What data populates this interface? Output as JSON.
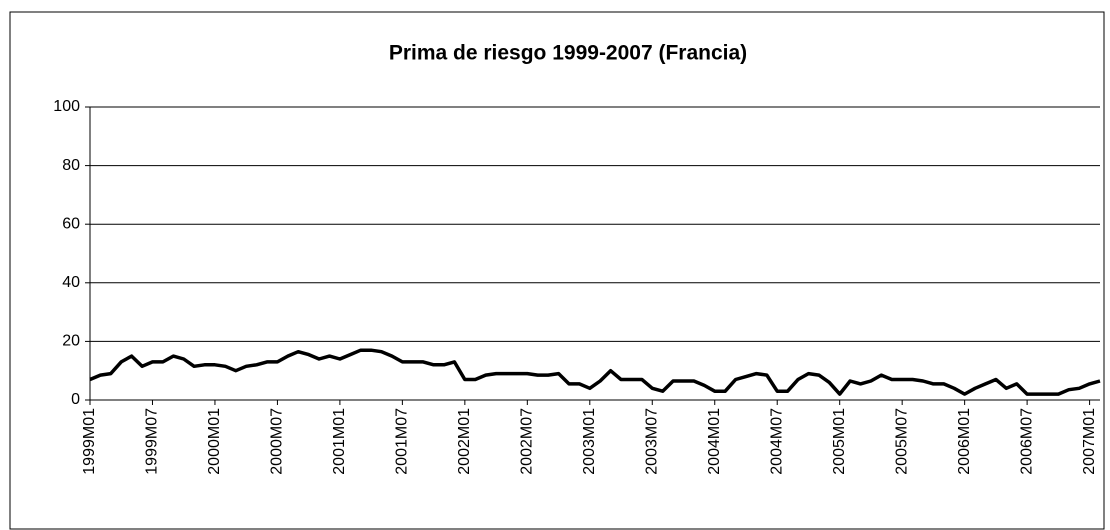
{
  "chart_data": {
    "type": "line",
    "title": "Prima de riesgo 1999-2007 (Francia)",
    "categories": [
      "1999M01",
      null,
      null,
      null,
      null,
      null,
      "1999M07",
      null,
      null,
      null,
      null,
      null,
      "2000M01",
      null,
      null,
      null,
      null,
      null,
      "2000M07",
      null,
      null,
      null,
      null,
      null,
      "2001M01",
      null,
      null,
      null,
      null,
      null,
      "2001M07",
      null,
      null,
      null,
      null,
      null,
      "2002M01",
      null,
      null,
      null,
      null,
      null,
      "2002M07",
      null,
      null,
      null,
      null,
      null,
      "2003M01",
      null,
      null,
      null,
      null,
      null,
      "2003M07",
      null,
      null,
      null,
      null,
      null,
      "2004M01",
      null,
      null,
      null,
      null,
      null,
      "2004M07",
      null,
      null,
      null,
      null,
      null,
      "2005M01",
      null,
      null,
      null,
      null,
      null,
      "2005M07",
      null,
      null,
      null,
      null,
      null,
      "2006M01",
      null,
      null,
      null,
      null,
      null,
      "2006M07",
      null,
      null,
      null,
      null,
      null,
      "2007M01",
      null
    ],
    "values": [
      7,
      8.5,
      9,
      13,
      15,
      11.5,
      13,
      13,
      15,
      14,
      11.5,
      12,
      12,
      11.5,
      10,
      11.5,
      12,
      13,
      13,
      15,
      16.5,
      15.5,
      14,
      15,
      14,
      15.5,
      17,
      17,
      16.5,
      15,
      13,
      13,
      13,
      12,
      12,
      13,
      7,
      7,
      8.5,
      9,
      9,
      9,
      9,
      8.5,
      8.5,
      9,
      5.5,
      5.5,
      4,
      6.5,
      10,
      7,
      7,
      7,
      4,
      3,
      6.5,
      6.5,
      6.5,
      5,
      3,
      3,
      7,
      8,
      9,
      8.5,
      3,
      3,
      7,
      9,
      8.5,
      6,
      2,
      6.5,
      5.5,
      6.5,
      8.5,
      7,
      7,
      7,
      6.5,
      5.5,
      5.5,
      4,
      2,
      4,
      5.5,
      7,
      4,
      5.5,
      2,
      2,
      2,
      2,
      3.5,
      4,
      5.5,
      6.5
    ],
    "color": "#000000",
    "ylim": [
      0,
      100
    ],
    "yticks": [
      0,
      20,
      40,
      60,
      80,
      100
    ],
    "grid": true
  }
}
